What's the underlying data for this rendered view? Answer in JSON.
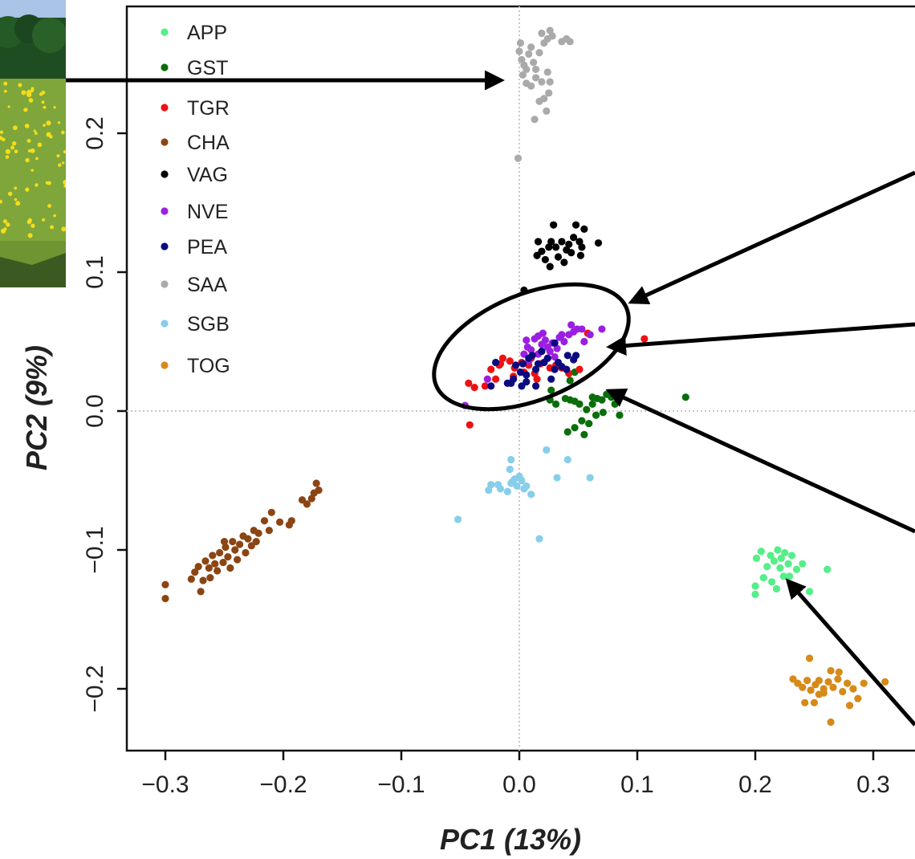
{
  "chart_data": {
    "type": "scatter",
    "xlabel": "PC1 (13%)",
    "ylabel": "PC2 (9%)",
    "xlim": [
      -0.33,
      0.33
    ],
    "ylim": [
      -0.243,
      0.291
    ],
    "x_ticks": [
      -0.3,
      -0.2,
      -0.1,
      0.0,
      0.1,
      0.2,
      0.3
    ],
    "x_tick_labels": [
      "−0.3",
      "−0.2",
      "−0.1",
      "0.0",
      "0.1",
      "0.2",
      "0.3"
    ],
    "y_ticks": [
      -0.2,
      -0.1,
      0.0,
      0.1,
      0.2
    ],
    "y_tick_labels": [
      "−0.2",
      "−0.1",
      "0.0",
      "0.1",
      "0.2"
    ],
    "reference_lines": {
      "x": 0.0,
      "y": 0.0,
      "style": "dotted"
    },
    "legend_position": "top-left",
    "series": [
      {
        "name": "APP",
        "color": "#55EE88",
        "points": [
          [
            0.201,
            -0.106
          ],
          [
            0.205,
            -0.101
          ],
          [
            0.21,
            -0.112
          ],
          [
            0.213,
            -0.104
          ],
          [
            0.216,
            -0.108
          ],
          [
            0.219,
            -0.1
          ],
          [
            0.222,
            -0.106
          ],
          [
            0.225,
            -0.102
          ],
          [
            0.228,
            -0.11
          ],
          [
            0.231,
            -0.104
          ],
          [
            0.235,
            -0.114
          ],
          [
            0.224,
            -0.119
          ],
          [
            0.214,
            -0.123
          ],
          [
            0.207,
            -0.12
          ],
          [
            0.2,
            -0.126
          ],
          [
            0.2,
            -0.132
          ],
          [
            0.218,
            -0.128
          ],
          [
            0.229,
            -0.119
          ],
          [
            0.24,
            -0.11
          ],
          [
            0.246,
            -0.13
          ],
          [
            0.261,
            -0.114
          ],
          [
            0.221,
            -0.113
          ]
        ]
      },
      {
        "name": "GST",
        "color": "#0A6E0A",
        "points": [
          [
            0.027,
            0.015
          ],
          [
            0.026,
            0.008
          ],
          [
            0.031,
            0.005
          ],
          [
            0.039,
            0.009
          ],
          [
            0.043,
            0.008
          ],
          [
            0.047,
            0.007
          ],
          [
            0.051,
            0.005
          ],
          [
            0.057,
            0.001
          ],
          [
            0.062,
            0.005
          ],
          [
            0.066,
            0.009
          ],
          [
            0.07,
            0.008
          ],
          [
            0.074,
            0.012
          ],
          [
            0.078,
            0.01
          ],
          [
            0.081,
            0.005
          ],
          [
            0.065,
            -0.003
          ],
          [
            0.071,
            -0.001
          ],
          [
            0.059,
            -0.009
          ],
          [
            0.053,
            -0.007
          ],
          [
            0.047,
            -0.012
          ],
          [
            0.055,
            -0.017
          ],
          [
            0.041,
            -0.015
          ],
          [
            0.085,
            -0.003
          ],
          [
            0.043,
            0.022
          ],
          [
            0.047,
            0.028
          ],
          [
            0.062,
            0.01
          ],
          [
            0.141,
            0.01
          ]
        ]
      },
      {
        "name": "TGR",
        "color": "#EE1111",
        "points": [
          [
            -0.029,
            0.018
          ],
          [
            -0.024,
            0.03
          ],
          [
            -0.017,
            0.033
          ],
          [
            -0.014,
            0.038
          ],
          [
            -0.008,
            0.036
          ],
          [
            -0.004,
            0.031
          ],
          [
            0.002,
            0.035
          ],
          [
            0.004,
            0.028
          ],
          [
            0.008,
            0.033
          ],
          [
            0.013,
            0.027
          ],
          [
            0.015,
            0.023
          ],
          [
            0.018,
            0.034
          ],
          [
            0.026,
            0.031
          ],
          [
            0.031,
            0.033
          ],
          [
            -0.02,
            0.023
          ],
          [
            -0.016,
            0.034
          ],
          [
            -0.005,
            0.025
          ],
          [
            0.01,
            0.038
          ],
          [
            0.021,
            0.035
          ],
          [
            0.036,
            0.031
          ],
          [
            0.042,
            0.027
          ],
          [
            0.051,
            0.03
          ],
          [
            -0.038,
            0.017
          ],
          [
            -0.043,
            0.02
          ],
          [
            -0.042,
            -0.01
          ],
          [
            0.106,
            0.052
          ],
          [
            0.058,
            0.056
          ]
        ]
      },
      {
        "name": "CHA",
        "color": "#8B4513",
        "points": [
          [
            -0.3,
            -0.125
          ],
          [
            -0.3,
            -0.135
          ],
          [
            -0.278,
            -0.121
          ],
          [
            -0.275,
            -0.116
          ],
          [
            -0.272,
            -0.112
          ],
          [
            -0.27,
            -0.13
          ],
          [
            -0.268,
            -0.122
          ],
          [
            -0.266,
            -0.108
          ],
          [
            -0.263,
            -0.113
          ],
          [
            -0.26,
            -0.104
          ],
          [
            -0.258,
            -0.11
          ],
          [
            -0.256,
            -0.115
          ],
          [
            -0.254,
            -0.102
          ],
          [
            -0.251,
            -0.109
          ],
          [
            -0.249,
            -0.098
          ],
          [
            -0.247,
            -0.105
          ],
          [
            -0.245,
            -0.113
          ],
          [
            -0.243,
            -0.094
          ],
          [
            -0.241,
            -0.1
          ],
          [
            -0.239,
            -0.107
          ],
          [
            -0.237,
            -0.096
          ],
          [
            -0.234,
            -0.09
          ],
          [
            -0.232,
            -0.102
          ],
          [
            -0.23,
            -0.092
          ],
          [
            -0.227,
            -0.097
          ],
          [
            -0.225,
            -0.086
          ],
          [
            -0.223,
            -0.094
          ],
          [
            -0.221,
            -0.088
          ],
          [
            -0.216,
            -0.079
          ],
          [
            -0.212,
            -0.086
          ],
          [
            -0.21,
            -0.073
          ],
          [
            -0.203,
            -0.08
          ],
          [
            -0.195,
            -0.082
          ],
          [
            -0.193,
            -0.079
          ],
          [
            -0.184,
            -0.064
          ],
          [
            -0.18,
            -0.067
          ],
          [
            -0.176,
            -0.063
          ],
          [
            -0.174,
            -0.059
          ],
          [
            -0.172,
            -0.052
          ],
          [
            -0.17,
            -0.057
          ],
          [
            -0.262,
            -0.12
          ],
          [
            -0.25,
            -0.094
          ]
        ]
      },
      {
        "name": "VAG",
        "color": "#000000",
        "points": [
          [
            0.019,
            0.115
          ],
          [
            0.015,
            0.112
          ],
          [
            0.022,
            0.109
          ],
          [
            0.025,
            0.118
          ],
          [
            0.027,
            0.122
          ],
          [
            0.029,
            0.134
          ],
          [
            0.031,
            0.118
          ],
          [
            0.033,
            0.111
          ],
          [
            0.026,
            0.104
          ],
          [
            0.036,
            0.122
          ],
          [
            0.038,
            0.107
          ],
          [
            0.04,
            0.116
          ],
          [
            0.042,
            0.12
          ],
          [
            0.044,
            0.114
          ],
          [
            0.046,
            0.125
          ],
          [
            0.048,
            0.134
          ],
          [
            0.051,
            0.122
          ],
          [
            0.053,
            0.118
          ],
          [
            0.055,
            0.131
          ],
          [
            0.052,
            0.112
          ],
          [
            0.067,
            0.121
          ],
          [
            0.004,
            0.087
          ],
          [
            0.016,
            0.122
          ]
        ]
      },
      {
        "name": "NVE",
        "color": "#9B1FE0",
        "points": [
          [
            0.004,
            0.041
          ],
          [
            0.007,
            0.046
          ],
          [
            0.01,
            0.044
          ],
          [
            0.013,
            0.052
          ],
          [
            0.016,
            0.054
          ],
          [
            0.019,
            0.048
          ],
          [
            0.022,
            0.051
          ],
          [
            0.024,
            0.046
          ],
          [
            0.026,
            0.043
          ],
          [
            0.028,
            0.049
          ],
          [
            0.03,
            0.039
          ],
          [
            0.032,
            0.045
          ],
          [
            0.034,
            0.053
          ],
          [
            0.036,
            0.055
          ],
          [
            0.038,
            0.05
          ],
          [
            0.042,
            0.055
          ],
          [
            0.044,
            0.062
          ],
          [
            0.046,
            0.057
          ],
          [
            0.049,
            0.059
          ],
          [
            0.053,
            0.059
          ],
          [
            0.06,
            0.055
          ],
          [
            0.07,
            0.059
          ],
          [
            0.008,
            0.036
          ],
          [
            0.016,
            0.041
          ],
          [
            0.024,
            0.038
          ],
          [
            -0.046,
            0.004
          ],
          [
            -0.027,
            0.023
          ],
          [
            0.006,
            0.051
          ],
          [
            0.055,
            0.05
          ],
          [
            0.02,
            0.056
          ]
        ]
      },
      {
        "name": "PEA",
        "color": "#0B0B80",
        "points": [
          [
            -0.01,
            0.02
          ],
          [
            -0.005,
            0.023
          ],
          [
            -0.003,
            0.033
          ],
          [
            0.001,
            0.028
          ],
          [
            0.003,
            0.034
          ],
          [
            0.006,
            0.026
          ],
          [
            0.008,
            0.038
          ],
          [
            0.011,
            0.04
          ],
          [
            0.014,
            0.03
          ],
          [
            0.016,
            0.034
          ],
          [
            0.019,
            0.043
          ],
          [
            0.021,
            0.035
          ],
          [
            0.024,
            0.038
          ],
          [
            0.027,
            0.023
          ],
          [
            0.03,
            0.03
          ],
          [
            0.033,
            0.035
          ],
          [
            0.036,
            0.032
          ],
          [
            0.041,
            0.04
          ],
          [
            0.046,
            0.037
          ],
          [
            0.048,
            0.04
          ],
          [
            0.006,
            0.021
          ],
          [
            -0.007,
            0.02
          ],
          [
            -0.02,
            0.035
          ],
          [
            -0.024,
            0.018
          ],
          [
            0.002,
            0.018
          ],
          [
            0.014,
            0.018
          ],
          [
            0.03,
            0.049
          ],
          [
            0.04,
            0.03
          ]
        ]
      },
      {
        "name": "SAA",
        "color": "#AAAAAA",
        "points": [
          [
            0.0,
            0.259
          ],
          [
            0.002,
            0.253
          ],
          [
            0.004,
            0.249
          ],
          [
            0.006,
            0.246
          ],
          [
            0.008,
            0.257
          ],
          [
            0.01,
            0.262
          ],
          [
            0.012,
            0.251
          ],
          [
            0.014,
            0.246
          ],
          [
            0.017,
            0.258
          ],
          [
            0.019,
            0.272
          ],
          [
            0.021,
            0.265
          ],
          [
            0.024,
            0.268
          ],
          [
            0.026,
            0.274
          ],
          [
            0.028,
            0.27
          ],
          [
            0.003,
            0.242
          ],
          [
            0.006,
            0.236
          ],
          [
            0.01,
            0.234
          ],
          [
            0.014,
            0.24
          ],
          [
            0.019,
            0.237
          ],
          [
            0.024,
            0.244
          ],
          [
            0.036,
            0.266
          ],
          [
            0.04,
            0.268
          ],
          [
            0.043,
            0.266
          ],
          [
            0.026,
            0.237
          ],
          [
            0.025,
            0.229
          ],
          [
            0.021,
            0.225
          ],
          [
            0.017,
            0.223
          ],
          [
            0.023,
            0.216
          ],
          [
            0.013,
            0.21
          ],
          [
            -0.001,
            0.182
          ],
          [
            0.001,
            0.265
          ]
        ]
      },
      {
        "name": "SGB",
        "color": "#87CEEB",
        "points": [
          [
            -0.008,
            -0.042
          ],
          [
            -0.006,
            -0.051
          ],
          [
            -0.01,
            -0.058
          ],
          [
            -0.016,
            -0.056
          ],
          [
            -0.026,
            -0.057
          ],
          [
            -0.024,
            -0.053
          ],
          [
            -0.018,
            -0.053
          ],
          [
            -0.007,
            -0.052
          ],
          [
            -0.004,
            -0.049
          ],
          [
            -0.002,
            -0.054
          ],
          [
            0.0,
            -0.047
          ],
          [
            0.002,
            -0.05
          ],
          [
            0.004,
            -0.056
          ],
          [
            0.006,
            -0.054
          ],
          [
            -0.007,
            -0.035
          ],
          [
            0.023,
            -0.028
          ],
          [
            0.041,
            -0.035
          ],
          [
            0.032,
            -0.048
          ],
          [
            0.06,
            -0.048
          ],
          [
            0.017,
            -0.092
          ],
          [
            -0.052,
            -0.078
          ],
          [
            0.01,
            -0.06
          ]
        ]
      },
      {
        "name": "TOG",
        "color": "#D68A18",
        "points": [
          [
            0.232,
            -0.193
          ],
          [
            0.236,
            -0.196
          ],
          [
            0.24,
            -0.199
          ],
          [
            0.244,
            -0.194
          ],
          [
            0.247,
            -0.201
          ],
          [
            0.251,
            -0.197
          ],
          [
            0.254,
            -0.204
          ],
          [
            0.258,
            -0.2
          ],
          [
            0.262,
            -0.195
          ],
          [
            0.266,
            -0.199
          ],
          [
            0.27,
            -0.193
          ],
          [
            0.274,
            -0.202
          ],
          [
            0.278,
            -0.196
          ],
          [
            0.283,
            -0.2
          ],
          [
            0.287,
            -0.207
          ],
          [
            0.292,
            -0.196
          ],
          [
            0.242,
            -0.21
          ],
          [
            0.25,
            -0.21
          ],
          [
            0.258,
            -0.203
          ],
          [
            0.264,
            -0.224
          ],
          [
            0.246,
            -0.178
          ],
          [
            0.264,
            -0.187
          ],
          [
            0.271,
            -0.188
          ],
          [
            0.28,
            -0.212
          ],
          [
            0.31,
            -0.195
          ],
          [
            0.254,
            -0.194
          ]
        ]
      }
    ]
  }
}
